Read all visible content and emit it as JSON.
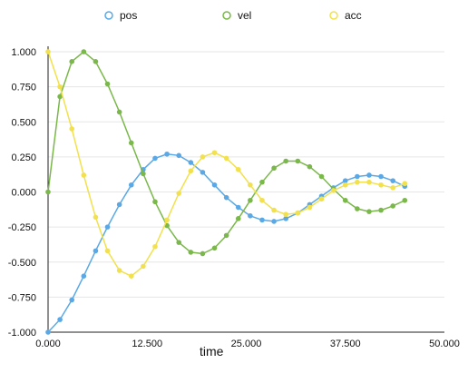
{
  "chart_data": {
    "type": "line",
    "title": "",
    "xlabel": "time",
    "ylabel": "",
    "xlim": [
      0,
      50
    ],
    "ylim": [
      -1,
      1
    ],
    "x_ticks": [
      "0.000",
      "12.500",
      "25.000",
      "37.500",
      "50.000"
    ],
    "y_ticks": [
      "1.000",
      "0.750",
      "0.500",
      "0.250",
      "0.000",
      "-0.250",
      "-0.500",
      "-0.750",
      "-1.000"
    ],
    "grid": true,
    "legend_position": "top",
    "markers": "circle",
    "series": [
      {
        "name": "pos",
        "color": "#5aa9e6",
        "x": [
          0,
          1.5,
          3,
          4.5,
          6,
          7.5,
          9,
          10.5,
          12,
          13.5,
          15,
          16.5,
          18,
          19.5,
          21,
          22.5,
          24,
          25.5,
          27,
          28.5,
          30,
          31.5,
          33,
          34.5,
          36,
          37.5,
          39,
          40.5,
          42,
          43.5,
          45
        ],
        "y": [
          -1.0,
          -0.91,
          -0.77,
          -0.6,
          -0.42,
          -0.25,
          -0.09,
          0.05,
          0.16,
          0.24,
          0.27,
          0.26,
          0.21,
          0.14,
          0.05,
          -0.04,
          -0.11,
          -0.17,
          -0.2,
          -0.21,
          -0.19,
          -0.15,
          -0.09,
          -0.03,
          0.03,
          0.08,
          0.11,
          0.12,
          0.11,
          0.08,
          0.04
        ]
      },
      {
        "name": "vel",
        "color": "#7ab84a",
        "x": [
          0,
          1.5,
          3,
          4.5,
          6,
          7.5,
          9,
          10.5,
          12,
          13.5,
          15,
          16.5,
          18,
          19.5,
          21,
          22.5,
          24,
          25.5,
          27,
          28.5,
          30,
          31.5,
          33,
          34.5,
          36,
          37.5,
          39,
          40.5,
          42,
          43.5,
          45
        ],
        "y": [
          0.0,
          0.68,
          0.93,
          1.0,
          0.93,
          0.77,
          0.57,
          0.35,
          0.13,
          -0.07,
          -0.24,
          -0.36,
          -0.43,
          -0.44,
          -0.4,
          -0.31,
          -0.19,
          -0.06,
          0.07,
          0.17,
          0.22,
          0.22,
          0.18,
          0.11,
          0.02,
          -0.06,
          -0.12,
          -0.14,
          -0.13,
          -0.1,
          -0.06
        ]
      },
      {
        "name": "acc",
        "color": "#f2e14c",
        "x": [
          0,
          1.5,
          3,
          4.5,
          6,
          7.5,
          9,
          10.5,
          12,
          13.5,
          15,
          16.5,
          18,
          19.5,
          21,
          22.5,
          24,
          25.5,
          27,
          28.5,
          30,
          31.5,
          33,
          34.5,
          36,
          37.5,
          39,
          40.5,
          42,
          43.5,
          45
        ],
        "y": [
          1.0,
          0.75,
          0.45,
          0.12,
          -0.18,
          -0.42,
          -0.56,
          -0.6,
          -0.53,
          -0.39,
          -0.2,
          -0.01,
          0.15,
          0.25,
          0.28,
          0.24,
          0.16,
          0.05,
          -0.06,
          -0.13,
          -0.16,
          -0.15,
          -0.11,
          -0.05,
          0.01,
          0.05,
          0.07,
          0.07,
          0.05,
          0.03,
          0.06
        ]
      }
    ]
  }
}
